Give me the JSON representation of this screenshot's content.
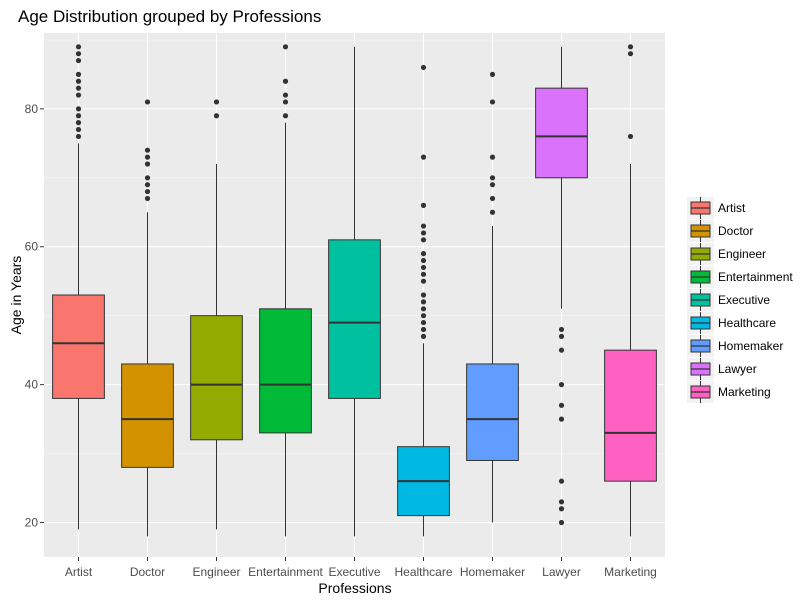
{
  "chart_data": {
    "type": "boxplot",
    "title": "Age Distribution grouped by Professions",
    "xlabel": "Professions",
    "ylabel": "Age in Years",
    "ylim": [
      15,
      91
    ],
    "yticks": [
      20,
      40,
      60,
      80
    ],
    "grid": true,
    "legend_position": "right",
    "categories": [
      "Artist",
      "Doctor",
      "Engineer",
      "Entertainment",
      "Executive",
      "Healthcare",
      "Homemaker",
      "Lawyer",
      "Marketing"
    ],
    "boxes": [
      {
        "name": "Artist",
        "color": "#F8766D",
        "min": 19,
        "q1": 38,
        "median": 46,
        "q3": 53,
        "max": 75,
        "outliers": [
          76,
          77,
          78,
          79,
          80,
          82,
          83,
          84,
          85,
          87,
          88,
          89
        ]
      },
      {
        "name": "Doctor",
        "color": "#D39200",
        "min": 18,
        "q1": 28,
        "median": 35,
        "q3": 43,
        "max": 65,
        "outliers": [
          67,
          68,
          69,
          70,
          72,
          73,
          74,
          81
        ]
      },
      {
        "name": "Engineer",
        "color": "#93AA00",
        "min": 19,
        "q1": 32,
        "median": 40,
        "q3": 50,
        "max": 72,
        "outliers": [
          79,
          81
        ]
      },
      {
        "name": "Entertainment",
        "color": "#00BA38",
        "min": 18,
        "q1": 33,
        "median": 40,
        "q3": 51,
        "max": 78,
        "outliers": [
          79,
          81,
          82,
          84,
          89
        ]
      },
      {
        "name": "Executive",
        "color": "#00C19F",
        "min": 18,
        "q1": 38,
        "median": 49,
        "q3": 61,
        "max": 89,
        "outliers": []
      },
      {
        "name": "Healthcare",
        "color": "#00B9E3",
        "min": 18,
        "q1": 21,
        "median": 26,
        "q3": 31,
        "max": 46,
        "outliers": [
          47,
          48,
          49,
          50,
          51,
          52,
          53,
          55,
          56,
          57,
          58,
          59,
          61,
          62,
          63,
          66,
          73,
          86
        ]
      },
      {
        "name": "Homemaker",
        "color": "#619CFF",
        "min": 20,
        "q1": 29,
        "median": 35,
        "q3": 43,
        "max": 63,
        "outliers": [
          65,
          67,
          69,
          70,
          73,
          81,
          85
        ]
      },
      {
        "name": "Lawyer",
        "color": "#DB72FB",
        "min": 51,
        "q1": 70,
        "median": 76,
        "q3": 83,
        "max": 89,
        "outliers": [
          20,
          22,
          23,
          26,
          35,
          37,
          40,
          45,
          47,
          48
        ]
      },
      {
        "name": "Marketing",
        "color": "#FF61C3",
        "min": 18,
        "q1": 26,
        "median": 33,
        "q3": 45,
        "max": 72,
        "outliers": [
          76,
          88,
          89
        ]
      }
    ]
  }
}
